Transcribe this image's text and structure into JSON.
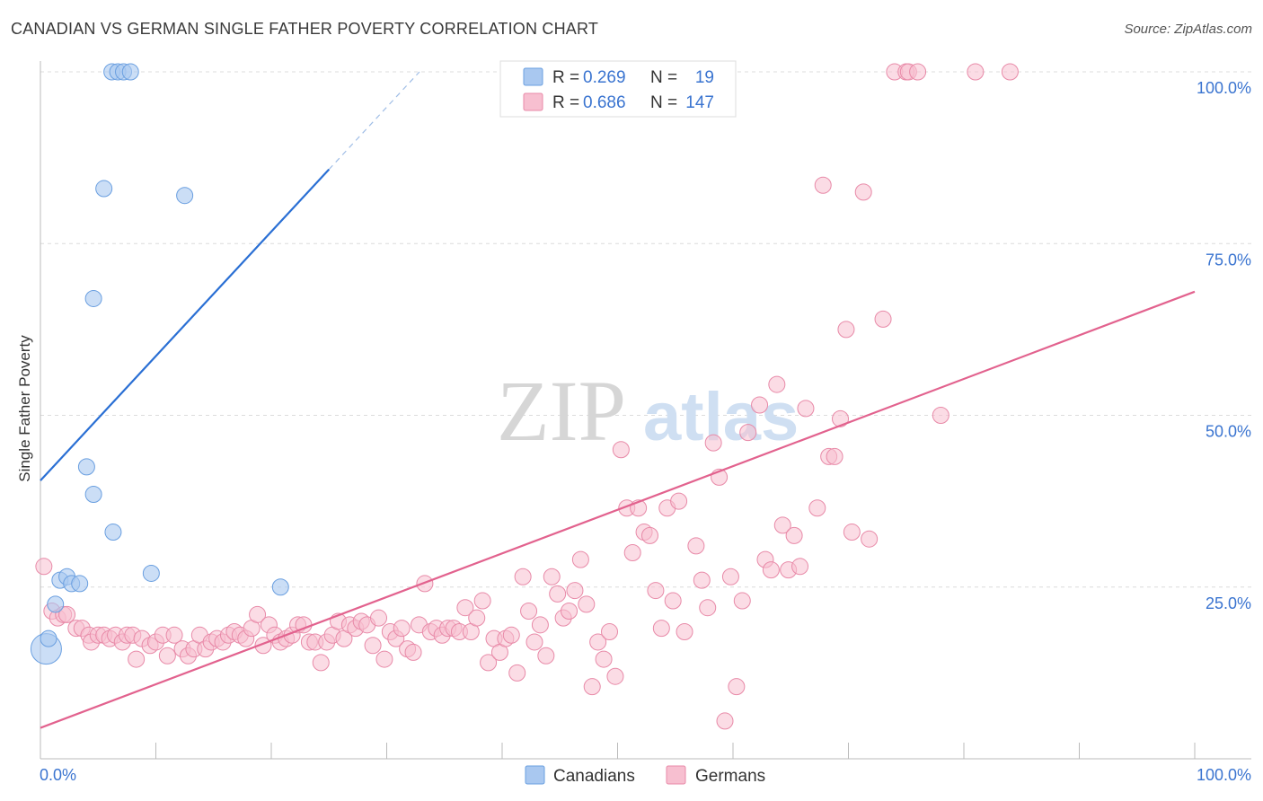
{
  "header": {
    "title": "CANADIAN VS GERMAN SINGLE FATHER POVERTY CORRELATION CHART",
    "source": "Source: ZipAtlas.com"
  },
  "watermark": {
    "part1": "ZIP",
    "part2": "atlas"
  },
  "colors": {
    "canadians_fill": "#a9c8f0",
    "canadians_stroke": "#6a9fe0",
    "canadians_line": "#2a6fd4",
    "germans_fill": "#f7bfd0",
    "germans_stroke": "#e88aa8",
    "germans_line": "#e2628e",
    "value_text": "#3a74d0"
  },
  "legend": {
    "r_label": "R =",
    "n_label": "N =",
    "rows": [
      {
        "series": "Canadians",
        "r": "0.269",
        "n": "19"
      },
      {
        "series": "Germans",
        "r": "0.686",
        "n": "147"
      }
    ]
  },
  "chart_data": {
    "type": "scatter",
    "title": "CANADIAN VS GERMAN SINGLE FATHER POVERTY CORRELATION CHART",
    "xlabel": "",
    "ylabel": "Single Father Poverty",
    "xlim": [
      0,
      100
    ],
    "ylim": [
      0,
      100
    ],
    "x_tick_labels": {
      "min": "0.0%",
      "max": "100.0%"
    },
    "y_ticks": [
      {
        "value": 25,
        "label": "25.0%"
      },
      {
        "value": 50,
        "label": "50.0%"
      },
      {
        "value": 75,
        "label": "75.0%"
      },
      {
        "value": 100,
        "label": "100.0%"
      }
    ],
    "grid": true,
    "legend_position": "bottom-center",
    "series": [
      {
        "name": "Canadians",
        "trend": {
          "x0": 0,
          "y0": 40.5,
          "x1": 25,
          "y1": 85.8,
          "dashed_to_x": 33
        },
        "points": [
          [
            0.5,
            16
          ],
          [
            0.7,
            17.5
          ],
          [
            1.3,
            22.5
          ],
          [
            1.7,
            26
          ],
          [
            2.3,
            26.5
          ],
          [
            2.7,
            25.5
          ],
          [
            3.4,
            25.5
          ],
          [
            4.0,
            42.5
          ],
          [
            4.6,
            67
          ],
          [
            4.6,
            38.5
          ],
          [
            5.5,
            83
          ],
          [
            6.3,
            33
          ],
          [
            6.2,
            100
          ],
          [
            6.7,
            100
          ],
          [
            7.2,
            100
          ],
          [
            7.8,
            100
          ],
          [
            9.6,
            27
          ],
          [
            12.5,
            82
          ],
          [
            20.8,
            25
          ]
        ]
      },
      {
        "name": "Germans",
        "trend": {
          "x0": 0,
          "y0": 4.5,
          "x1": 100,
          "y1": 68
        },
        "points": [
          [
            0.3,
            28
          ],
          [
            1.0,
            21.5
          ],
          [
            1.5,
            20.5
          ],
          [
            2.0,
            21
          ],
          [
            2.3,
            21
          ],
          [
            3.1,
            19
          ],
          [
            3.6,
            19
          ],
          [
            4.2,
            18
          ],
          [
            4.4,
            17
          ],
          [
            5.0,
            18
          ],
          [
            5.5,
            18
          ],
          [
            6.0,
            17.5
          ],
          [
            6.5,
            18
          ],
          [
            7.1,
            17
          ],
          [
            7.5,
            18
          ],
          [
            8.0,
            18
          ],
          [
            8.3,
            14.5
          ],
          [
            8.8,
            17.5
          ],
          [
            9.5,
            16.5
          ],
          [
            10.0,
            17
          ],
          [
            10.6,
            18
          ],
          [
            11.0,
            15
          ],
          [
            11.6,
            18
          ],
          [
            12.3,
            16
          ],
          [
            12.8,
            15
          ],
          [
            13.3,
            16
          ],
          [
            13.8,
            18
          ],
          [
            14.3,
            16
          ],
          [
            14.8,
            17
          ],
          [
            15.3,
            17.5
          ],
          [
            15.8,
            17
          ],
          [
            16.3,
            18
          ],
          [
            16.8,
            18.5
          ],
          [
            17.3,
            18
          ],
          [
            17.8,
            17.5
          ],
          [
            18.3,
            19
          ],
          [
            18.8,
            21
          ],
          [
            19.3,
            16.5
          ],
          [
            19.8,
            19.5
          ],
          [
            20.3,
            18
          ],
          [
            20.8,
            17
          ],
          [
            21.3,
            17.5
          ],
          [
            21.8,
            18
          ],
          [
            22.3,
            19.5
          ],
          [
            22.8,
            19.5
          ],
          [
            23.3,
            17
          ],
          [
            23.8,
            17
          ],
          [
            24.3,
            14
          ],
          [
            24.8,
            17
          ],
          [
            25.3,
            18
          ],
          [
            25.8,
            20
          ],
          [
            26.3,
            17.5
          ],
          [
            26.8,
            19.5
          ],
          [
            27.3,
            19
          ],
          [
            27.8,
            20
          ],
          [
            28.3,
            19.5
          ],
          [
            28.8,
            16.5
          ],
          [
            29.3,
            20.5
          ],
          [
            29.8,
            14.5
          ],
          [
            30.3,
            18.5
          ],
          [
            30.8,
            17.5
          ],
          [
            31.3,
            19
          ],
          [
            31.8,
            16
          ],
          [
            32.3,
            15.5
          ],
          [
            32.8,
            19.5
          ],
          [
            33.3,
            25.5
          ],
          [
            33.8,
            18.5
          ],
          [
            34.3,
            19
          ],
          [
            34.8,
            18
          ],
          [
            35.3,
            19
          ],
          [
            35.8,
            19
          ],
          [
            36.3,
            18.5
          ],
          [
            36.8,
            22
          ],
          [
            37.3,
            18.5
          ],
          [
            37.8,
            20.5
          ],
          [
            38.3,
            23
          ],
          [
            38.8,
            14
          ],
          [
            39.3,
            17.5
          ],
          [
            39.8,
            15.5
          ],
          [
            40.3,
            17.5
          ],
          [
            40.8,
            18
          ],
          [
            41.3,
            12.5
          ],
          [
            41.8,
            26.5
          ],
          [
            42.3,
            21.5
          ],
          [
            42.8,
            17
          ],
          [
            43.3,
            19.5
          ],
          [
            43.8,
            15
          ],
          [
            44.3,
            26.5
          ],
          [
            44.8,
            24
          ],
          [
            45.3,
            20.5
          ],
          [
            45.8,
            21.5
          ],
          [
            46.3,
            24.5
          ],
          [
            46.8,
            29
          ],
          [
            47.3,
            22.5
          ],
          [
            47.8,
            10.5
          ],
          [
            48.3,
            17
          ],
          [
            48.8,
            14.5
          ],
          [
            49.3,
            18.5
          ],
          [
            49.8,
            12
          ],
          [
            50.3,
            45
          ],
          [
            50.8,
            36.5
          ],
          [
            51.3,
            30
          ],
          [
            51.8,
            36.5
          ],
          [
            52.3,
            33
          ],
          [
            52.8,
            32.5
          ],
          [
            53.3,
            24.5
          ],
          [
            53.8,
            19
          ],
          [
            54.3,
            36.5
          ],
          [
            54.8,
            23
          ],
          [
            55.3,
            37.5
          ],
          [
            55.8,
            18.5
          ],
          [
            56.8,
            31
          ],
          [
            57.3,
            26
          ],
          [
            57.8,
            22
          ],
          [
            58.3,
            46
          ],
          [
            58.8,
            41
          ],
          [
            59.3,
            5.5
          ],
          [
            59.8,
            26.5
          ],
          [
            60.3,
            10.5
          ],
          [
            60.8,
            23
          ],
          [
            61.3,
            47.5
          ],
          [
            62.3,
            51.5
          ],
          [
            62.8,
            29
          ],
          [
            63.3,
            27.5
          ],
          [
            63.8,
            54.5
          ],
          [
            64.3,
            34
          ],
          [
            64.8,
            27.5
          ],
          [
            65.3,
            32.5
          ],
          [
            65.8,
            28
          ],
          [
            66.3,
            51
          ],
          [
            67.3,
            36.5
          ],
          [
            67.8,
            83.5
          ],
          [
            68.3,
            44
          ],
          [
            68.8,
            44
          ],
          [
            69.3,
            49.5
          ],
          [
            69.8,
            62.5
          ],
          [
            70.3,
            33
          ],
          [
            71.3,
            82.5
          ],
          [
            71.8,
            32
          ],
          [
            73.0,
            64
          ],
          [
            74.0,
            100
          ],
          [
            75.0,
            100
          ],
          [
            75.2,
            100
          ],
          [
            76.0,
            100
          ],
          [
            78.0,
            50
          ],
          [
            81.0,
            100
          ],
          [
            84.0,
            100
          ]
        ]
      }
    ]
  },
  "bottom_legend": {
    "items": [
      {
        "label": "Canadians"
      },
      {
        "label": "Germans"
      }
    ]
  }
}
